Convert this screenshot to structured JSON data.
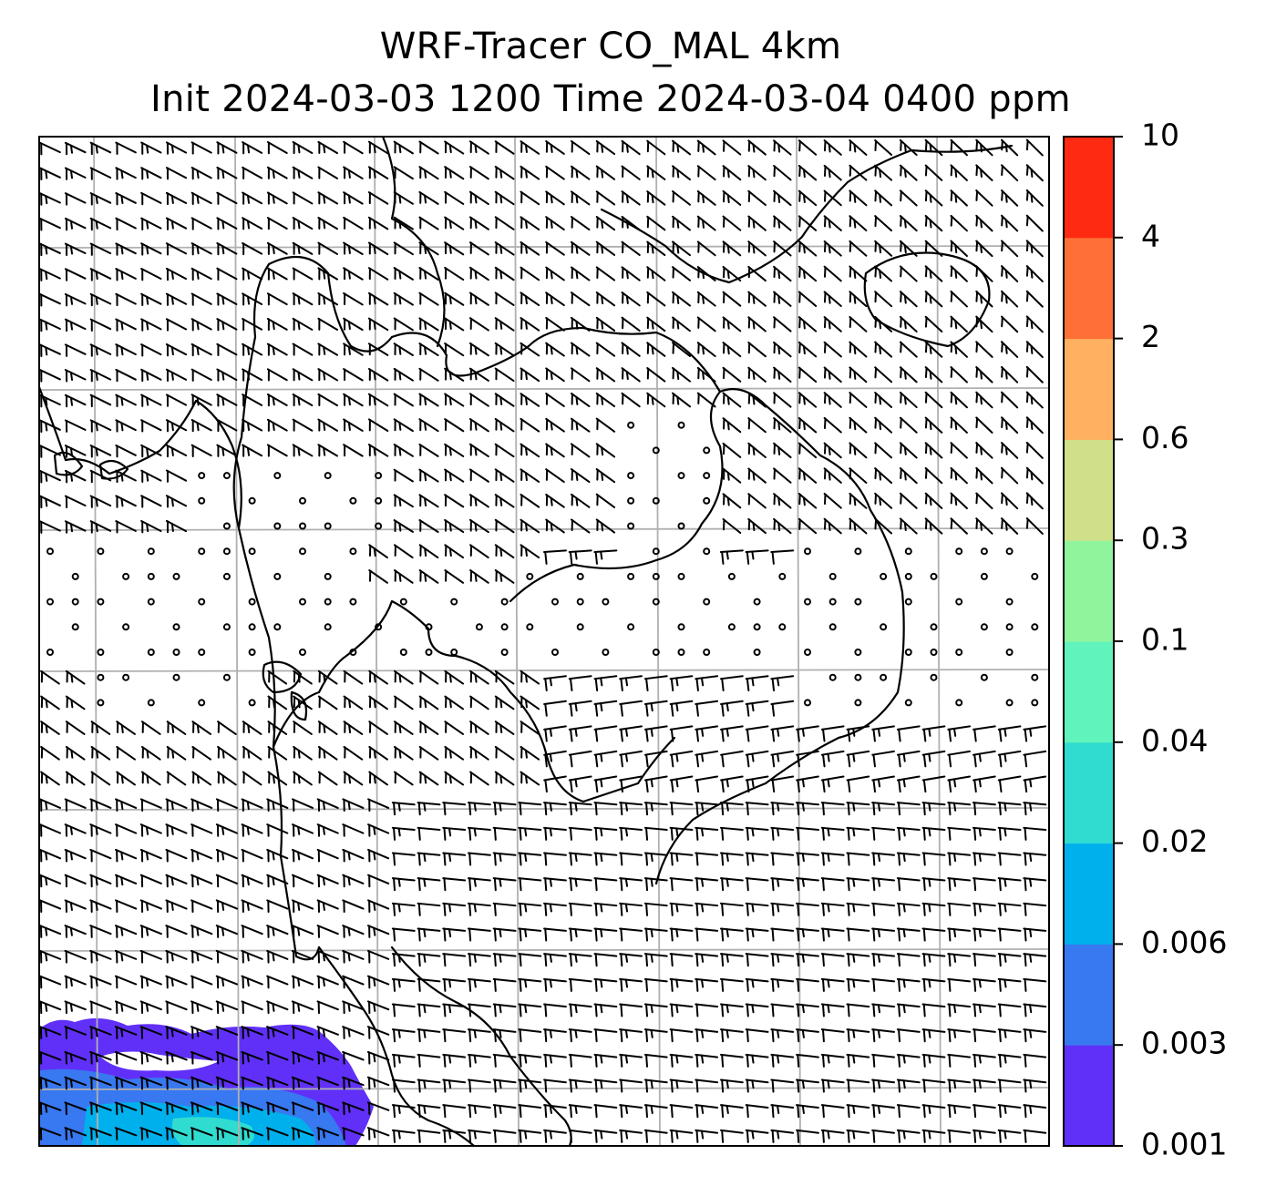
{
  "title": {
    "line1": "WRF-Tracer CO_MAL 4km",
    "line2": "Init 2024-03-03 1200 Time 2024-03-04 0400 ppm"
  },
  "map": {
    "model": "WRF-Tracer",
    "tracer": "CO_MAL",
    "resolution": "4km",
    "init_time": "2024-03-03 1200",
    "valid_time": "2024-03-04 0400",
    "units": "ppm",
    "gridlines": true,
    "gridline_color": "#b0b0b0",
    "coastline_color": "#000000",
    "wind_barb_color": "#000000",
    "tracer_region": "lower-left corner (low concentrations, 0.001-0.04 ppm)"
  },
  "colorbar": {
    "levels": [
      "0.001",
      "0.003",
      "0.006",
      "0.02",
      "0.04",
      "0.1",
      "0.3",
      "0.6",
      "2",
      "4",
      "10"
    ],
    "colors": [
      "#6030f8",
      "#3878f0",
      "#00b0ec",
      "#30dcd0",
      "#60f4bc",
      "#90f49c",
      "#d0e088",
      "#ffb060",
      "#ff7038",
      "#ff2a12"
    ]
  }
}
